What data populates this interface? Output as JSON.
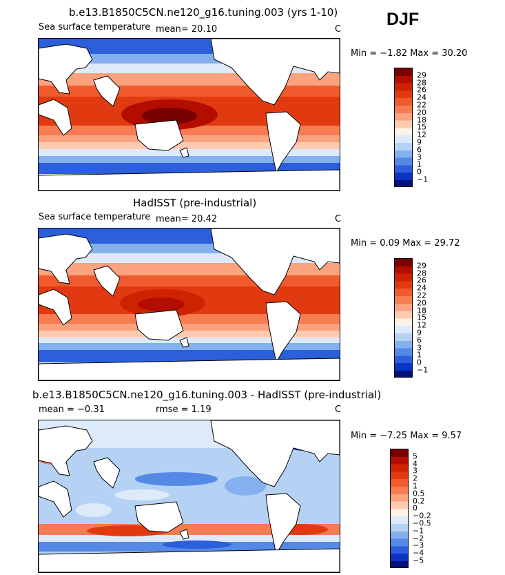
{
  "season": "DJF",
  "panels": [
    {
      "title": "b.e13.B1850C5CN.ne120_g16.tuning.003 (yrs 1-10)",
      "variable": "Sea surface temperature",
      "stat1": "mean=  20.10",
      "stat2": "",
      "units": "C",
      "range": "Min =   −1.82  Max =   30.20",
      "legend": {
        "labels": [
          "29",
          "28",
          "26",
          "24",
          "22",
          "20",
          "18",
          "15",
          "12",
          "9",
          "6",
          "3",
          "1",
          "0",
          "−1"
        ],
        "colors": [
          "#7a0000",
          "#b30d00",
          "#cf2200",
          "#e23a10",
          "#f05a2c",
          "#f77c52",
          "#fba27e",
          "#fdcbb0",
          "#fdf2e6",
          "#dceafa",
          "#b5d2f5",
          "#84b0ee",
          "#5589e6",
          "#2b5fdc",
          "#0c34c4",
          "#00127a"
        ]
      }
    },
    {
      "title": "HadISST (pre-industrial)",
      "variable": "Sea surface temperature",
      "stat1": "mean=  20.42",
      "stat2": "",
      "units": "C",
      "range": "Min =    0.09  Max =   29.72",
      "legend": {
        "labels": [
          "29",
          "28",
          "26",
          "24",
          "22",
          "20",
          "18",
          "15",
          "12",
          "9",
          "6",
          "3",
          "1",
          "0",
          "−1"
        ],
        "colors": [
          "#7a0000",
          "#b30d00",
          "#cf2200",
          "#e23a10",
          "#f05a2c",
          "#f77c52",
          "#fba27e",
          "#fdcbb0",
          "#fdf2e6",
          "#dceafa",
          "#b5d2f5",
          "#84b0ee",
          "#5589e6",
          "#2b5fdc",
          "#0c34c4",
          "#00127a"
        ]
      }
    },
    {
      "title": "b.e13.B1850C5CN.ne120_g16.tuning.003 - HadISST (pre-industrial)",
      "variable": "",
      "stat1": "mean =   −0.31",
      "stat2": "rmse =   1.19",
      "units": "C",
      "range": "Min =   −7.25  Max =    9.57",
      "legend": {
        "labels": [
          "5",
          "4",
          "3",
          "2",
          "1",
          "0.5",
          "0.2",
          "0",
          "−0.2",
          "−0.5",
          "−1",
          "−2",
          "−3",
          "−4",
          "−5"
        ],
        "colors": [
          "#7a0000",
          "#b30d00",
          "#cf2200",
          "#e23a10",
          "#f05a2c",
          "#f77c52",
          "#fba27e",
          "#fdcbb0",
          "#fdf2e6",
          "#dceafa",
          "#b5d2f5",
          "#84b0ee",
          "#5589e6",
          "#2b5fdc",
          "#0c34c4",
          "#00127a"
        ]
      }
    }
  ]
}
